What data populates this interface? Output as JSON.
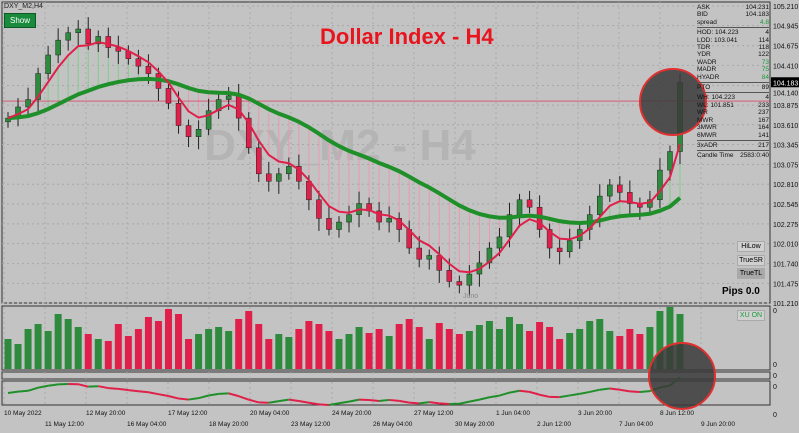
{
  "window": {
    "symbol_label": "DXY_M2,H4",
    "show_button": "Show",
    "title": "Dollar Index - H4",
    "watermark": "DXY_M2 - H4",
    "juno_label": "Juno"
  },
  "panel": {
    "rows": [
      {
        "k": "ASK",
        "v": "104.231"
      },
      {
        "k": "BID",
        "v": "104.183"
      },
      {
        "k": "spread",
        "v": "4.8",
        "g": true,
        "sep": true
      },
      {
        "k": "HOD: 104.223",
        "v": "4"
      },
      {
        "k": "LOD: 103.041",
        "v": "114"
      },
      {
        "k": "TDR",
        "v": "118"
      },
      {
        "k": "YDR",
        "v": "122"
      },
      {
        "k": "WADR",
        "v": "73",
        "g": true
      },
      {
        "k": "MADR",
        "v": "75",
        "g": true
      },
      {
        "k": "HYADR",
        "v": "84",
        "g": true,
        "sep": true
      },
      {
        "k": "PTO",
        "v": "89",
        "sep": true
      },
      {
        "k": "WH: 104.223",
        "v": "4"
      },
      {
        "k": "WL: 101.851",
        "v": "233"
      },
      {
        "k": "WR",
        "v": "237"
      },
      {
        "k": "MWR",
        "v": "167"
      },
      {
        "k": "3MWR",
        "v": "164"
      },
      {
        "k": "6MWR",
        "v": "141",
        "sep": true
      },
      {
        "k": "3xADR",
        "v": "217",
        "sep": true
      },
      {
        "k": "Candle Time",
        "v": "2583:0:40"
      }
    ]
  },
  "buttons": {
    "hilow": "HiLow",
    "truesr": "TrueSR",
    "truetl": "TrueTL",
    "pips": "Pips 0.0",
    "xu": "XU ON"
  },
  "colors": {
    "bull": "#2e8b3e",
    "bear": "#e0204a",
    "ma_fast": "#e0204a",
    "ma_slow": "#1f8f2a",
    "background": "#c3c3c3",
    "highlight_circle": "#3a3a3a",
    "circle_border": "#e03030"
  },
  "chart_data": {
    "type": "candlestick",
    "price_ticks": [
      "105.210",
      "104.945",
      "104.675",
      "104.410",
      "104.140",
      "103.875",
      "103.610",
      "103.345",
      "103.075",
      "102.810",
      "102.545",
      "102.275",
      "102.010",
      "101.740",
      "101.475",
      "101.210"
    ],
    "current_price": "104.183",
    "ylim": [
      101.21,
      105.21
    ],
    "x_ticks": [
      "10 May 2022",
      "11 May 12:00",
      "12 May 20:00",
      "16 May 04:00",
      "17 May 12:00",
      "18 May 20:00",
      "20 May 04:00",
      "23 May 12:00",
      "24 May 20:00",
      "26 May 04:00",
      "27 May 12:00",
      "30 May 20:00",
      "1 Jun 04:00",
      "2 Jun 12:00",
      "3 Jun 20:00",
      "7 Jun 04:00",
      "8 Jun 12:00",
      "9 Jun 20:00"
    ],
    "indicator_zero_labels": [
      "0",
      "0",
      "0",
      "0",
      "0"
    ],
    "closes": [
      103.7,
      103.85,
      103.95,
      104.3,
      104.55,
      104.75,
      104.85,
      104.9,
      104.7,
      104.8,
      104.65,
      104.6,
      104.5,
      104.4,
      104.3,
      104.1,
      103.9,
      103.6,
      103.45,
      103.55,
      103.8,
      103.95,
      104.0,
      103.7,
      103.3,
      102.95,
      102.85,
      102.95,
      103.05,
      102.85,
      102.6,
      102.35,
      102.2,
      102.3,
      102.4,
      102.55,
      102.45,
      102.3,
      102.35,
      102.2,
      101.95,
      101.8,
      101.85,
      101.65,
      101.5,
      101.45,
      101.6,
      101.75,
      101.95,
      102.1,
      102.4,
      102.6,
      102.5,
      102.2,
      101.95,
      101.9,
      102.05,
      102.2,
      102.4,
      102.65,
      102.8,
      102.7,
      102.55,
      102.5,
      102.6,
      103.0,
      103.25,
      104.18
    ],
    "volumes": [
      30,
      25,
      40,
      45,
      38,
      55,
      50,
      42,
      35,
      30,
      28,
      45,
      33,
      40,
      52,
      48,
      60,
      55,
      30,
      35,
      40,
      42,
      38,
      50,
      58,
      45,
      30,
      35,
      32,
      40,
      48,
      45,
      38,
      30,
      35,
      42,
      36,
      40,
      33,
      45,
      50,
      42,
      30,
      46,
      40,
      35,
      38,
      44,
      48,
      40,
      52,
      45,
      38,
      47,
      42,
      30,
      36,
      40,
      48,
      50,
      38,
      33,
      40,
      35,
      42,
      58,
      62,
      55
    ],
    "resistance_level": 103.93
  }
}
